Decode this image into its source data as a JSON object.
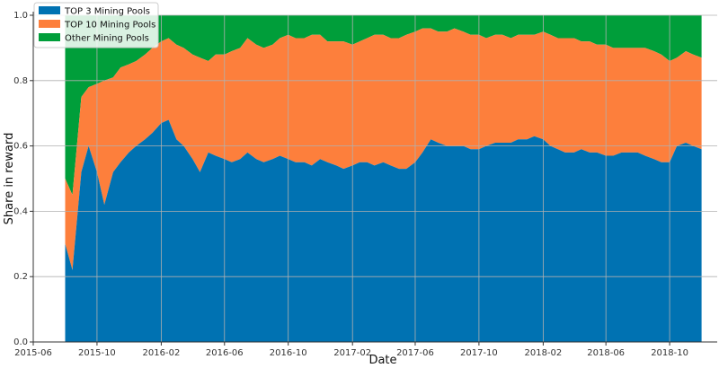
{
  "chart_data": {
    "type": "area",
    "stacked": true,
    "title": "",
    "xlabel": "Date",
    "ylabel": "Share in reward",
    "x_ticks": [
      "2015-06",
      "2015-10",
      "2016-02",
      "2016-06",
      "2016-10",
      "2017-02",
      "2017-06",
      "2017-10",
      "2018-02",
      "2018-06",
      "2018-10"
    ],
    "y_ticks": [
      "0.0",
      "0.2",
      "0.4",
      "0.6",
      "0.8",
      "1.0"
    ],
    "ylim": [
      0,
      1.0
    ],
    "xlim": [
      "2015-06-01",
      "2018-12-31"
    ],
    "grid": true,
    "legend_position": "top-left",
    "x": [
      "2015-08-01",
      "2015-08-15",
      "2015-09-01",
      "2015-09-15",
      "2015-10-01",
      "2015-10-15",
      "2015-11-01",
      "2015-11-15",
      "2015-12-01",
      "2015-12-15",
      "2016-01-01",
      "2016-01-15",
      "2016-02-01",
      "2016-02-15",
      "2016-03-01",
      "2016-03-15",
      "2016-04-01",
      "2016-04-15",
      "2016-05-01",
      "2016-05-15",
      "2016-06-01",
      "2016-06-15",
      "2016-07-01",
      "2016-07-15",
      "2016-08-01",
      "2016-08-15",
      "2016-09-01",
      "2016-09-15",
      "2016-10-01",
      "2016-10-15",
      "2016-11-01",
      "2016-11-15",
      "2016-12-01",
      "2016-12-15",
      "2017-01-01",
      "2017-01-15",
      "2017-02-01",
      "2017-02-15",
      "2017-03-01",
      "2017-03-15",
      "2017-04-01",
      "2017-04-15",
      "2017-05-01",
      "2017-05-15",
      "2017-06-01",
      "2017-06-15",
      "2017-07-01",
      "2017-07-15",
      "2017-08-01",
      "2017-08-15",
      "2017-09-01",
      "2017-09-15",
      "2017-10-01",
      "2017-10-15",
      "2017-11-01",
      "2017-11-15",
      "2017-12-01",
      "2017-12-15",
      "2018-01-01",
      "2018-01-15",
      "2018-02-01",
      "2018-02-15",
      "2018-03-01",
      "2018-03-15",
      "2018-04-01",
      "2018-04-15",
      "2018-05-01",
      "2018-05-15",
      "2018-06-01",
      "2018-06-15",
      "2018-07-01",
      "2018-07-15",
      "2018-08-01",
      "2018-08-15",
      "2018-09-01",
      "2018-09-15",
      "2018-10-01",
      "2018-10-15",
      "2018-11-01",
      "2018-11-15",
      "2018-12-01"
    ],
    "series": [
      {
        "name": "TOP 3 Mining Pools",
        "color": "#0072b2",
        "values": [
          0.3,
          0.22,
          0.52,
          0.6,
          0.52,
          0.42,
          0.52,
          0.55,
          0.58,
          0.6,
          0.62,
          0.64,
          0.67,
          0.68,
          0.62,
          0.6,
          0.56,
          0.52,
          0.58,
          0.57,
          0.56,
          0.55,
          0.56,
          0.58,
          0.56,
          0.55,
          0.56,
          0.57,
          0.56,
          0.55,
          0.55,
          0.54,
          0.56,
          0.55,
          0.54,
          0.53,
          0.54,
          0.55,
          0.55,
          0.54,
          0.55,
          0.54,
          0.53,
          0.53,
          0.55,
          0.58,
          0.62,
          0.61,
          0.6,
          0.6,
          0.6,
          0.59,
          0.59,
          0.6,
          0.61,
          0.61,
          0.61,
          0.62,
          0.62,
          0.63,
          0.62,
          0.6,
          0.59,
          0.58,
          0.58,
          0.59,
          0.58,
          0.58,
          0.57,
          0.57,
          0.58,
          0.58,
          0.58,
          0.57,
          0.56,
          0.55,
          0.55,
          0.6,
          0.61,
          0.6,
          0.59
        ]
      },
      {
        "name": "TOP 10 Mining Pools",
        "color": "#fd7f3c",
        "values": [
          0.5,
          0.45,
          0.75,
          0.78,
          0.79,
          0.8,
          0.81,
          0.84,
          0.85,
          0.86,
          0.88,
          0.9,
          0.92,
          0.93,
          0.91,
          0.9,
          0.88,
          0.87,
          0.86,
          0.88,
          0.88,
          0.89,
          0.9,
          0.93,
          0.91,
          0.9,
          0.91,
          0.93,
          0.94,
          0.93,
          0.93,
          0.94,
          0.94,
          0.92,
          0.92,
          0.92,
          0.91,
          0.92,
          0.93,
          0.94,
          0.94,
          0.93,
          0.93,
          0.94,
          0.95,
          0.96,
          0.96,
          0.95,
          0.95,
          0.96,
          0.95,
          0.94,
          0.94,
          0.93,
          0.94,
          0.94,
          0.93,
          0.94,
          0.94,
          0.94,
          0.95,
          0.94,
          0.93,
          0.93,
          0.93,
          0.92,
          0.92,
          0.91,
          0.91,
          0.9,
          0.9,
          0.9,
          0.9,
          0.9,
          0.89,
          0.88,
          0.86,
          0.87,
          0.89,
          0.88,
          0.87
        ]
      },
      {
        "name": "Other Mining Pools",
        "color": "#009e3a",
        "values": [
          1.0,
          1.0,
          1.0,
          1.0,
          1.0,
          1.0,
          1.0,
          1.0,
          1.0,
          1.0,
          1.0,
          1.0,
          1.0,
          1.0,
          1.0,
          1.0,
          1.0,
          1.0,
          1.0,
          1.0,
          1.0,
          1.0,
          1.0,
          1.0,
          1.0,
          1.0,
          1.0,
          1.0,
          1.0,
          1.0,
          1.0,
          1.0,
          1.0,
          1.0,
          1.0,
          1.0,
          1.0,
          1.0,
          1.0,
          1.0,
          1.0,
          1.0,
          1.0,
          1.0,
          1.0,
          1.0,
          1.0,
          1.0,
          1.0,
          1.0,
          1.0,
          1.0,
          1.0,
          1.0,
          1.0,
          1.0,
          1.0,
          1.0,
          1.0,
          1.0,
          1.0,
          1.0,
          1.0,
          1.0,
          1.0,
          1.0,
          1.0,
          1.0,
          1.0,
          1.0,
          1.0,
          1.0,
          1.0,
          1.0,
          1.0,
          1.0,
          1.0,
          1.0,
          1.0,
          1.0,
          1.0
        ]
      }
    ]
  }
}
